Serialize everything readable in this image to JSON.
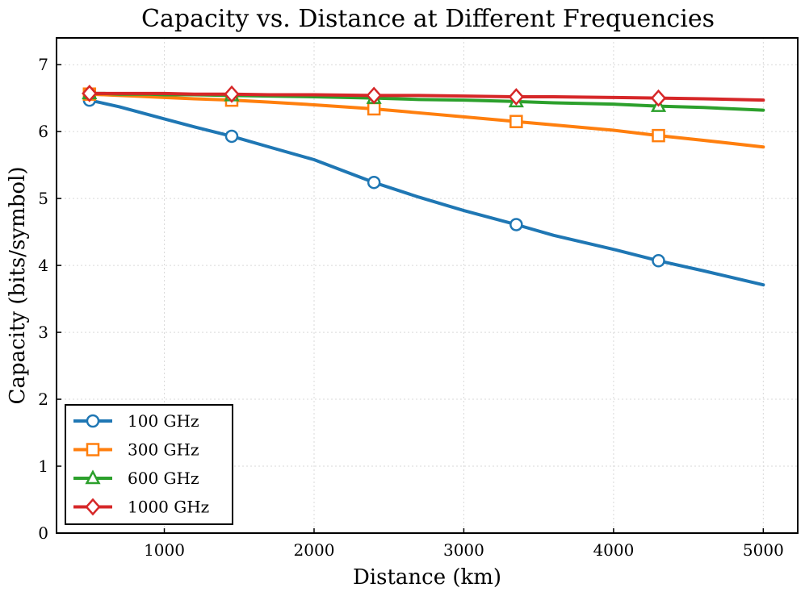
{
  "chart_data": {
    "type": "line",
    "title": "Capacity vs. Distance at Different Frequencies",
    "xlabel": "Distance (km)",
    "ylabel": "Capacity (bits/symbol)",
    "xlim": [
      280,
      5230
    ],
    "ylim": [
      0,
      7.4
    ],
    "xticks": [
      1000,
      2000,
      3000,
      4000,
      5000
    ],
    "yticks": [
      0,
      1,
      2,
      3,
      4,
      5,
      6,
      7
    ],
    "grid": true,
    "legend_position": "lower-left",
    "x": [
      500,
      600,
      700,
      800,
      900,
      1000,
      1200,
      1450,
      1700,
      2000,
      2400,
      2700,
      3000,
      3350,
      3600,
      4000,
      4300,
      4600,
      5000
    ],
    "marker_x": [
      500,
      1450,
      2400,
      3350,
      4300
    ],
    "series": [
      {
        "name": "100 GHz",
        "color": "#1f77b4",
        "marker": "circle",
        "values": [
          6.47,
          6.42,
          6.37,
          6.31,
          6.25,
          6.19,
          6.07,
          5.93,
          5.77,
          5.58,
          5.24,
          5.02,
          4.82,
          4.61,
          4.45,
          4.24,
          4.07,
          3.92,
          3.71
        ],
        "marker_values": [
          6.47,
          5.93,
          5.24,
          4.61,
          4.07
        ]
      },
      {
        "name": "300 GHz",
        "color": "#ff7f0e",
        "marker": "square",
        "values": [
          6.56,
          6.55,
          6.54,
          6.53,
          6.52,
          6.51,
          6.49,
          6.47,
          6.44,
          6.4,
          6.34,
          6.28,
          6.22,
          6.15,
          6.1,
          6.02,
          5.94,
          5.87,
          5.77
        ],
        "marker_values": [
          6.56,
          6.47,
          6.34,
          6.15,
          5.94
        ]
      },
      {
        "name": "600 GHz",
        "color": "#2ca02c",
        "marker": "triangle",
        "values": [
          6.57,
          6.57,
          6.56,
          6.56,
          6.56,
          6.55,
          6.55,
          6.54,
          6.53,
          6.52,
          6.5,
          6.48,
          6.47,
          6.45,
          6.43,
          6.41,
          6.38,
          6.36,
          6.32
        ],
        "marker_values": [
          6.57,
          6.54,
          6.5,
          6.45,
          6.38
        ]
      },
      {
        "name": "1000 GHz",
        "color": "#d62728",
        "marker": "diamond",
        "values": [
          6.57,
          6.57,
          6.57,
          6.57,
          6.57,
          6.57,
          6.56,
          6.56,
          6.55,
          6.55,
          6.54,
          6.54,
          6.53,
          6.52,
          6.52,
          6.51,
          6.5,
          6.49,
          6.47
        ],
        "marker_values": [
          6.57,
          6.56,
          6.54,
          6.52,
          6.5
        ]
      }
    ]
  }
}
